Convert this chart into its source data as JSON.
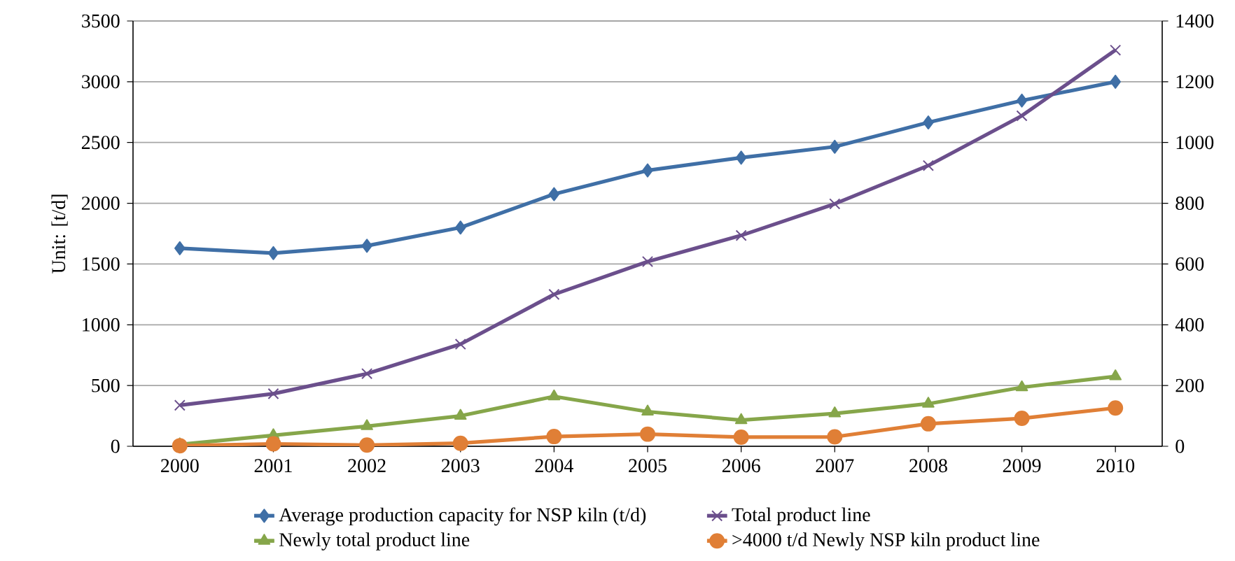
{
  "chart_data": {
    "type": "line",
    "ylabel": "Unit: [t/d]",
    "categories": [
      "2000",
      "2001",
      "2002",
      "2003",
      "2004",
      "2005",
      "2006",
      "2007",
      "2008",
      "2009",
      "2010"
    ],
    "series": [
      {
        "name": "Average production capacity for NSP kiln (t/d)",
        "color": "#3f6fa6",
        "marker": "diamond",
        "values": [
          1630,
          1590,
          1650,
          1800,
          2075,
          2270,
          2375,
          2465,
          2665,
          2845,
          3000
        ]
      },
      {
        "name": "Total product line",
        "color": "#6b4f8c",
        "marker": "cross",
        "axis": "y2",
        "values": [
          135,
          173,
          239,
          336,
          500,
          608,
          694,
          798,
          924,
          1088,
          1304
        ]
      },
      {
        "name": "Newly total product line",
        "color": "#86a64a",
        "marker": "triangle",
        "axis": "y2",
        "values": [
          6,
          36,
          66,
          100,
          164,
          114,
          86,
          108,
          140,
          194,
          230
        ]
      },
      {
        "name": ">4000 t/d Newly NSP kiln product line",
        "color": "#e07f36",
        "marker": "circle",
        "axis": "y2",
        "values": [
          2,
          8,
          4,
          10,
          32,
          40,
          30,
          31,
          74,
          92,
          126
        ]
      }
    ],
    "ylim": [
      0,
      3500
    ],
    "yticks": [
      0,
      500,
      1000,
      1500,
      2000,
      2500,
      3000,
      3500
    ],
    "y2lim": [
      0,
      1400
    ],
    "y2ticks": [
      0,
      200,
      400,
      600,
      800,
      1000,
      1200,
      1400
    ],
    "grid": "y",
    "legend": "bottom",
    "line_style": "solid"
  }
}
